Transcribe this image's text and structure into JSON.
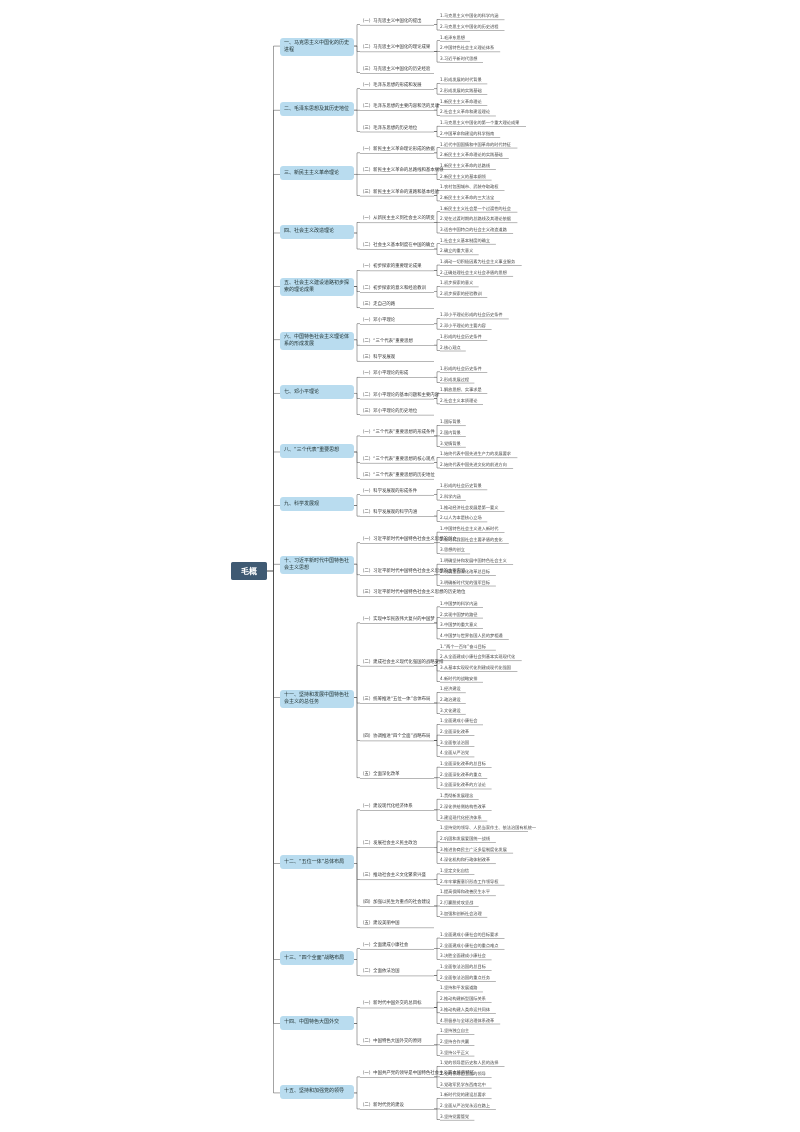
{
  "root": "毛概",
  "nodes": [
    {
      "label": "一、马克思主义中国化的历史进程",
      "children": [
        {
          "label": "（一）马克思主义中国化的提出",
          "children": [
            "1.马克思主义中国化的科学内涵",
            "2.马克思主义中国化的历史进程"
          ]
        },
        {
          "label": "（二）马克思主义中国化的理论成果",
          "children": [
            "1.毛泽东思想",
            "2.中国特色社会主义理论体系",
            "3.习近平新时代思想"
          ]
        },
        {
          "label": "（三）马克思主义中国化的历史经验",
          "children": []
        }
      ]
    },
    {
      "label": "二、毛泽东思想及其历史地位",
      "children": [
        {
          "label": "（一）毛泽东思想的形成和发展",
          "children": [
            "1.形成发展的时代背景",
            "2.形成发展的实践基础"
          ]
        },
        {
          "label": "（二）毛泽东思想的主要内容和活的灵魂",
          "children": [
            "1.新民主主义革命理论",
            "2.社会主义革命和建设理论"
          ]
        },
        {
          "label": "（三）毛泽东思想的历史地位",
          "children": [
            "1.马克思主义中国化的第一个重大理论成果",
            "2.中国革命和建设的科学指南"
          ]
        }
      ]
    },
    {
      "label": "三、新民主主义革命理论",
      "children": [
        {
          "label": "（一）新民主主义革命理论形成的依据",
          "children": [
            "1.近代中国国情和中国革命的时代特征",
            "2.新民主主义革命理论的实践基础"
          ]
        },
        {
          "label": "（二）新民主主义革命的总路线和基本纲领",
          "children": [
            "1.新民主主义革命的总路线",
            "2.新民主主义的基本纲领"
          ]
        },
        {
          "label": "（三）新民主主义革命的道路和基本经验",
          "children": [
            "1.农村包围城市、武装夺取政权",
            "2.新民主主义革命的三大法宝"
          ]
        }
      ]
    },
    {
      "label": "四、社会主义改造理论",
      "children": [
        {
          "label": "（一）从新民主主义到社会主义的转变",
          "children": [
            "1.新民主主义社会是一个过渡性的社会",
            "2.党在过渡时期的总路线及其理论依据",
            "3.适合中国特点的社会主义改造道路"
          ]
        },
        {
          "label": "（二）社会主义基本制度在中国的确立",
          "children": [
            "1.社会主义基本制度的确立",
            "2.确立的重大意义"
          ]
        }
      ]
    },
    {
      "label": "五、社会主义建设道路初步探索的理论成果",
      "children": [
        {
          "label": "（一）初步探索的重要理论成果",
          "children": [
            "1.调动一切积极因素为社会主义事业服务",
            "2.正确处理社会主义社会矛盾的思想"
          ]
        },
        {
          "label": "（二）初步探索的意义和经验教训",
          "children": [
            "1.初步探索的意义",
            "2.初步探索的经验教训"
          ]
        },
        {
          "label": "（三）走自己的路",
          "children": []
        }
      ]
    },
    {
      "label": "六、中国特色社会主义理论体系的形成发展",
      "children": [
        {
          "label": "（一）邓小平理论",
          "children": [
            "1.邓小平理论形成的社会历史条件",
            "2.邓小平理论的主要内容"
          ]
        },
        {
          "label": "（二）“三个代表”重要思想",
          "children": [
            "1.形成的社会历史条件",
            "2.核心观点"
          ]
        },
        {
          "label": "（三）科学发展观",
          "children": []
        }
      ]
    },
    {
      "label": "七、邓小平理论",
      "children": [
        {
          "label": "（一）邓小平理论的形成",
          "children": [
            "1.形成的社会历史条件",
            "2.形成发展过程"
          ]
        },
        {
          "label": "（二）邓小平理论的基本问题和主要内容",
          "children": [
            "1.解放思想、实事求是",
            "2.社会主义本质理论"
          ]
        },
        {
          "label": "（三）邓小平理论的历史地位",
          "children": []
        }
      ]
    },
    {
      "label": "八、“三个代表”重要思想",
      "children": [
        {
          "label": "（一）“三个代表”重要思想的形成条件",
          "children": [
            "1.国际背景",
            "2.国内背景",
            "3.党情背景"
          ]
        },
        {
          "label": "（二）“三个代表”重要思想的核心观点",
          "children": [
            "1.始终代表中国先进生产力的发展要求",
            "2.始终代表中国先进文化的前进方向"
          ]
        },
        {
          "label": "（三）“三个代表”重要思想的历史地位",
          "children": []
        }
      ]
    },
    {
      "label": "九、科学发展观",
      "children": [
        {
          "label": "（一）科学发展观的形成条件",
          "children": [
            "1.形成的社会历史背景",
            "2.科学内涵"
          ]
        },
        {
          "label": "（二）科学发展观的科学内涵",
          "children": [
            "1.推动经济社会发展是第一要义",
            "2.以人为本是核心立场"
          ]
        }
      ]
    },
    {
      "label": "十、习近平新时代中国特色社会主义思想",
      "children": [
        {
          "label": "（一）习近平新时代中国特色社会主义思想的创立",
          "children": [
            "1.中国特色社会主义进入新时代",
            "2.新时代我国社会主要矛盾的变化",
            "3.思想的创立"
          ]
        },
        {
          "label": "（二）习近平新时代中国特色社会主义思想的主要内容",
          "children": [
            "1.明确坚持和发展中国特色社会主义",
            "2.明确全面深化改革总目标",
            "3.明确新时代党的强军目标"
          ]
        },
        {
          "label": "（三）习近平新时代中国特色社会主义思想的历史地位",
          "children": []
        }
      ]
    },
    {
      "label": "十一、坚持和发展中国特色社会主义的总任务",
      "children": [
        {
          "label": "（一）实现中华民族伟大复兴的中国梦",
          "children": [
            "1.中国梦的科学内涵",
            "2.实现中国梦的路径",
            "3.中国梦的重大意义",
            "4.中国梦与世界各国人民的梦相通"
          ]
        },
        {
          "label": "（二）建成社会主义现代化强国的战略安排",
          "children": [
            "1.“两个一百年”奋斗目标",
            "2.从全面建成小康社会到基本实现现代化",
            "3.从基本实现现代化到建成现代化强国",
            "4.新时代的战略安排"
          ]
        },
        {
          "label": "（三）统筹推进“五位一体”总体布局",
          "children": [
            "1.经济建设",
            "2.政治建设",
            "3.文化建设"
          ]
        },
        {
          "label": "（四）协调推进“四个全面”战略布局",
          "children": [
            "1.全面建成小康社会",
            "2.全面深化改革",
            "3.全面依法治国",
            "4.全面从严治党"
          ]
        },
        {
          "label": "（五）全面深化改革",
          "children": [
            "1.全面深化改革的总目标",
            "2.全面深化改革的重点",
            "3.全面深化改革的方法论"
          ]
        }
      ]
    },
    {
      "label": "十二、“五位一体”总体布局",
      "children": [
        {
          "label": "（一）建设现代化经济体系",
          "children": [
            "1.贯彻新发展理念",
            "2.深化供给侧结构性改革",
            "3.建设现代化经济体系"
          ]
        },
        {
          "label": "（二）发展社会主义民主政治",
          "children": [
            "1.坚持党的领导、人民当家作主、依法治国有机统一",
            "2.巩固和发展爱国统一战线",
            "3.推进协商民主广泛多层制度化发展",
            "4.深化机构和行政体制改革"
          ]
        },
        {
          "label": "（三）推动社会主义文化繁荣兴盛",
          "children": [
            "1.坚定文化自信",
            "2.牢牢掌握意识形态工作领导权"
          ]
        },
        {
          "label": "（四）加强以民生为重点的社会建设",
          "children": [
            "1.提高保障和改善民生水平",
            "2.打赢脱贫攻坚战",
            "3.加强和创新社会治理"
          ]
        },
        {
          "label": "（五）建设美丽中国",
          "children": []
        }
      ]
    },
    {
      "label": "十三、“四个全面”战略布局",
      "children": [
        {
          "label": "（一）全面建成小康社会",
          "children": [
            "1.全面建成小康社会的目标要求",
            "2.全面建成小康社会的重点难点",
            "3.决胜全面建成小康社会"
          ]
        },
        {
          "label": "（二）全面依法治国",
          "children": [
            "1.全面依法治国的总目标",
            "2.全面依法治国的重点任务"
          ]
        }
      ]
    },
    {
      "label": "十四、中国特色大国外交",
      "children": [
        {
          "label": "（一）新时代中国外交的总目标",
          "children": [
            "1.坚持和平发展道路",
            "2.推动构建新型国际关系",
            "3.推动构建人类命运共同体",
            "4.积极参与全球治理体系改革"
          ]
        },
        {
          "label": "（二）中国特色大国外交的原则",
          "children": [
            "1.坚持独立自主",
            "2.坚持合作共赢",
            "3.坚持公平正义"
          ]
        }
      ]
    },
    {
      "label": "十五、坚持和加强党的领导",
      "children": [
        {
          "label": "（一）中国共产党的领导是中国特色社会主义最本质的特征",
          "children": [
            "1.党的领导是历史和人民的选择",
            "2.党的领导是全面的领导",
            "3.党政军民学东西南北中"
          ]
        },
        {
          "label": "（二）新时代党的建设",
          "children": [
            "1.新时代党的建设总要求",
            "2.全面从严治党永远在路上",
            "3.坚持党要管党"
          ]
        }
      ]
    }
  ]
}
